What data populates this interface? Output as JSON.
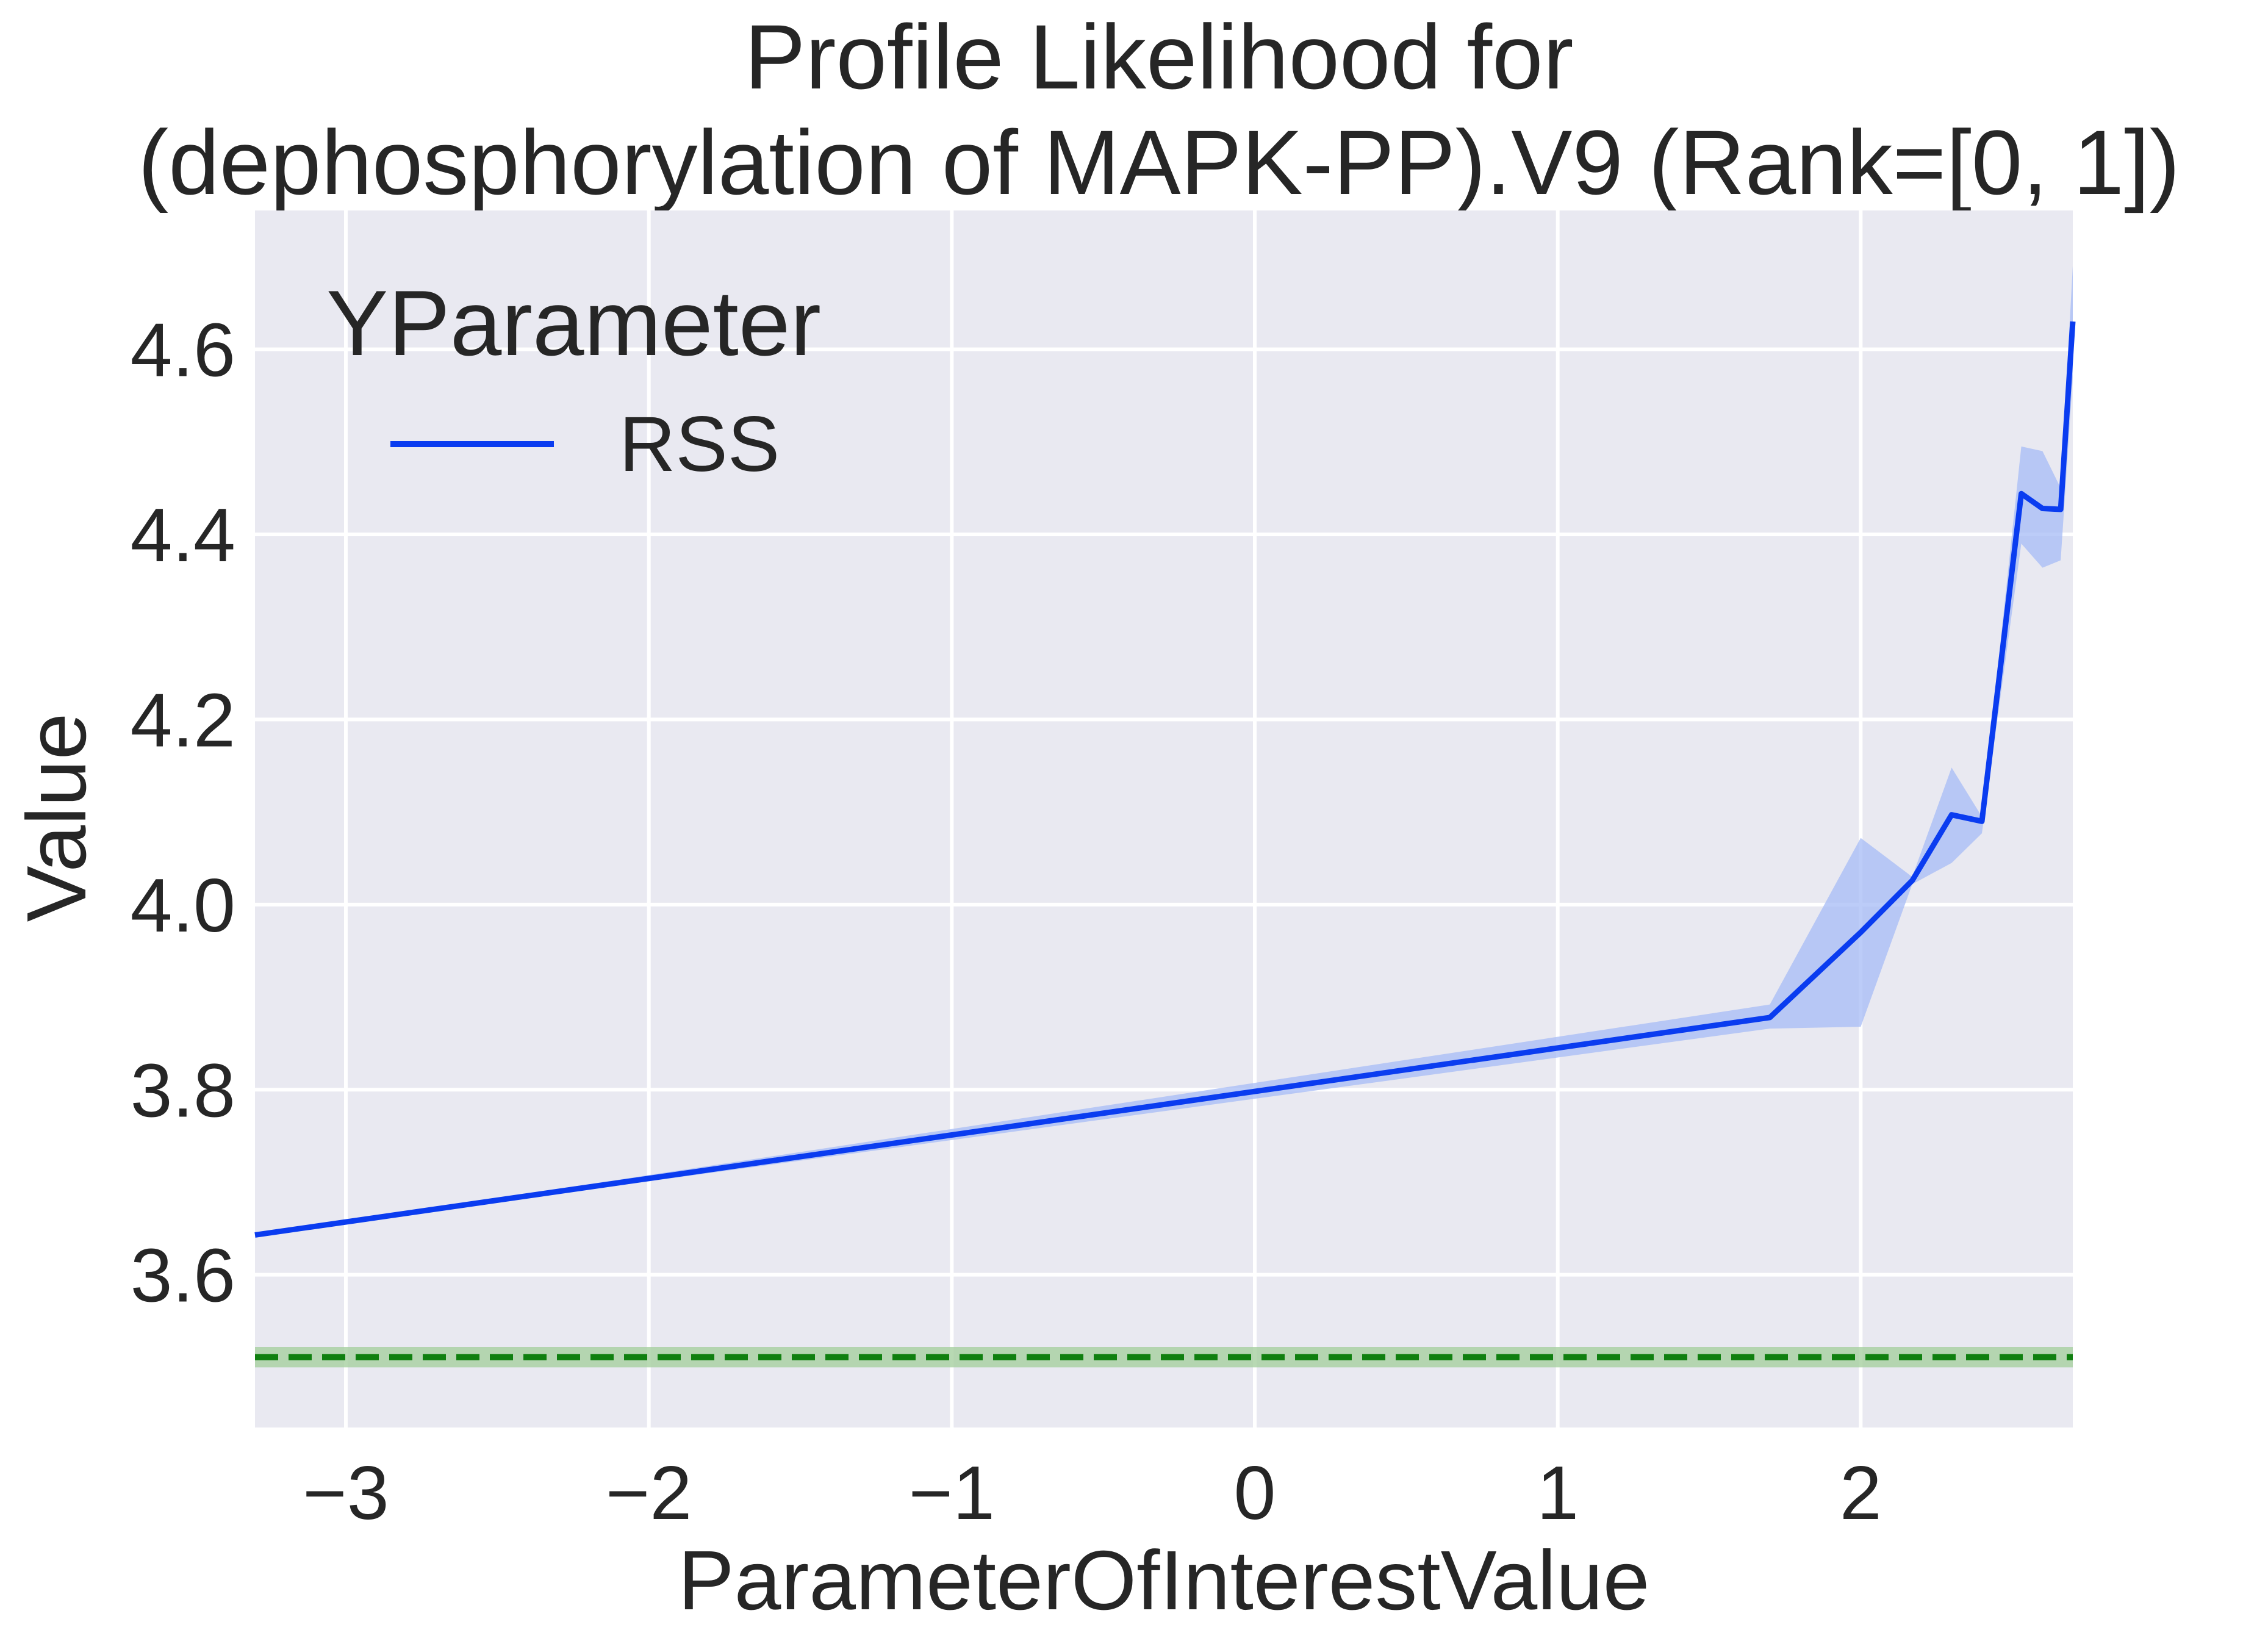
{
  "chart_data": {
    "type": "line",
    "title": [
      "Profile Likelihood for",
      "(dephosphorylation of MAPK-PP).V9 (Rank=[0, 1])"
    ],
    "xlabel": "ParameterOfInterestValue",
    "ylabel": "Value",
    "xlim": [
      -3.3,
      2.7
    ],
    "ylim": [
      3.435,
      4.75
    ],
    "xticks": [
      -3,
      -2,
      -1,
      0,
      1,
      2
    ],
    "xtick_labels": [
      "−3",
      "−2",
      "−1",
      "0",
      "1",
      "2"
    ],
    "yticks": [
      3.6,
      3.8,
      4.0,
      4.2,
      4.4,
      4.6
    ],
    "ytick_labels": [
      "3.6",
      "3.8",
      "4.0",
      "4.2",
      "4.4",
      "4.6"
    ],
    "grid": true,
    "background": "#e9e9f1",
    "legend": {
      "title": "YParameter",
      "placement": "upper-left",
      "entries": [
        "RSS"
      ]
    },
    "series": [
      {
        "name": "RSS",
        "color": "#0a3cf0",
        "band_color": "#a6bbf6",
        "x": [
          -3.3,
          1.7,
          2.0,
          2.17,
          2.3,
          2.4,
          2.53,
          2.6,
          2.66,
          2.7
        ],
        "y": [
          3.643,
          3.878,
          3.97,
          4.026,
          4.097,
          4.09,
          4.444,
          4.428,
          4.427,
          4.63
        ],
        "band_upper": [
          3.643,
          3.892,
          4.072,
          4.03,
          4.148,
          4.095,
          4.495,
          4.49,
          4.45,
          4.69
        ],
        "band_lower": [
          3.643,
          3.866,
          3.868,
          4.022,
          4.045,
          4.077,
          4.39,
          4.364,
          4.372,
          4.57
        ]
      }
    ],
    "threshold": {
      "y": 3.511,
      "color": "#0f7f0f",
      "style": "dashed",
      "band": [
        3.5,
        3.522
      ],
      "band_color": "#a6cfa0"
    }
  }
}
